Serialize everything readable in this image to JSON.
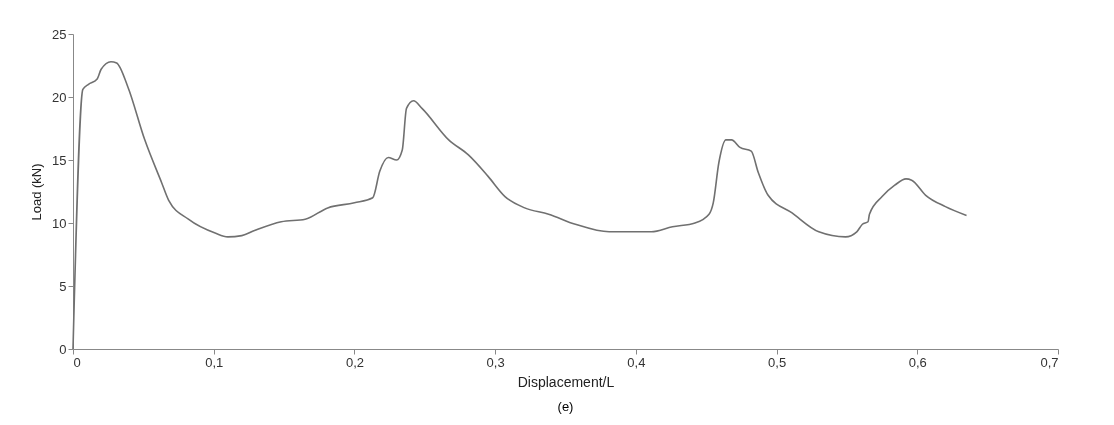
{
  "chart_data": {
    "type": "line",
    "xlabel": "Displacement/L",
    "ylabel": "Load (kN)",
    "annotations": [
      "(e)"
    ],
    "xlim": [
      0,
      0.7
    ],
    "xticks": [
      0,
      {
        "value": 0.1,
        "label": "0,1"
      },
      {
        "value": 0.2,
        "label": "0,2"
      },
      {
        "value": 0.3,
        "label": "0,3"
      },
      {
        "value": 0.4,
        "label": "0,4"
      },
      {
        "value": 0.5,
        "label": "0,5"
      },
      {
        "value": 0.6,
        "label": "0,6"
      },
      {
        "value": 0.7,
        "label": "0,7"
      }
    ],
    "ylim": [
      0,
      25
    ],
    "yticks": [
      0,
      5,
      10,
      15,
      20,
      25
    ],
    "grid": false,
    "legend": false,
    "marker": "none",
    "line_style": "solid",
    "series": [
      {
        "color": "#707070",
        "x": [
          0,
          0.007,
          0.011,
          0.017,
          0.02,
          0.027,
          0.031,
          0.039,
          0.051,
          0.063,
          0.068,
          0.082,
          0.101,
          0.11,
          0.12,
          0.129,
          0.148,
          0.165,
          0.181,
          0.2,
          0.213,
          0.218,
          0.224,
          0.23,
          0.234,
          0.237,
          0.242,
          0.248,
          0.267,
          0.281,
          0.295,
          0.307,
          0.321,
          0.338,
          0.357,
          0.381,
          0.411,
          0.426,
          0.442,
          0.452,
          0.455,
          0.459,
          0.464,
          0.468,
          0.474,
          0.482,
          0.487,
          0.494,
          0.511,
          0.53,
          0.549,
          0.557,
          0.561,
          0.565,
          0.566,
          0.575,
          0.584,
          0.592,
          0.596,
          0.606,
          0.62,
          0.635
        ],
        "values": [
          0,
          20.6,
          21.0,
          21.4,
          22.2,
          22.8,
          22.7,
          20.8,
          16.6,
          13.2,
          11.8,
          10.3,
          9.2,
          8.9,
          9.0,
          9.4,
          10.1,
          10.3,
          11.2,
          11.6,
          12.0,
          14.1,
          15.2,
          15.0,
          15.8,
          19.1,
          19.7,
          19.1,
          16.6,
          15.4,
          13.7,
          12.1,
          11.2,
          10.7,
          9.9,
          9.3,
          9.3,
          9.7,
          10.0,
          10.7,
          11.6,
          14.8,
          16.6,
          16.6,
          16.0,
          15.7,
          14.0,
          12.2,
          10.8,
          9.3,
          8.9,
          9.3,
          9.9,
          10.1,
          10.7,
          12.1,
          13.0,
          13.5,
          13.4,
          12.2,
          11.3,
          10.6
        ]
      }
    ]
  }
}
